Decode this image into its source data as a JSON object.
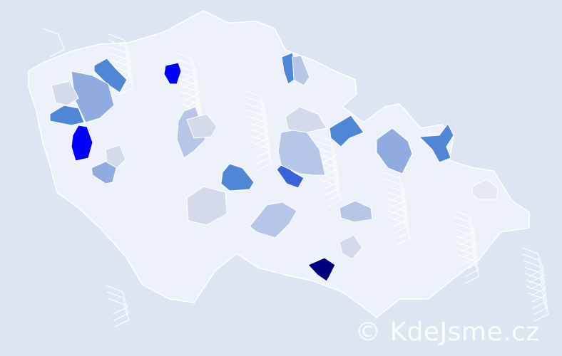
{
  "map": {
    "country_fill": "#edf1f9",
    "border_color": "#ffffff",
    "background": "#dce6f3",
    "highlight_colors": {
      "darkest": "#000080",
      "strong": "#0000ff",
      "medium_strong": "#3a63d8",
      "medium": "#4f87d6",
      "light_medium": "#8fabe0",
      "light": "#b5c6e7",
      "very_light": "#d3dbea",
      "faint": "#e6e8ef"
    }
  },
  "watermark": "© KdeJsme.cz"
}
